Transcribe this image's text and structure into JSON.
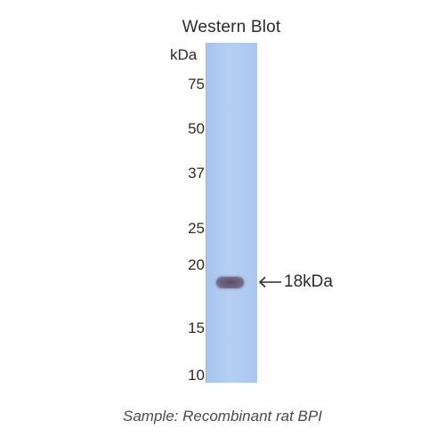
{
  "title": "Western Blot",
  "unit_label": "kDa",
  "markers": [
    {
      "label": "75",
      "value": 75
    },
    {
      "label": "50",
      "value": 50
    },
    {
      "label": "37",
      "value": 37
    },
    {
      "label": "25",
      "value": 25
    },
    {
      "label": "20",
      "value": 20
    },
    {
      "label": "15",
      "value": 15
    },
    {
      "label": "10",
      "value": 10
    }
  ],
  "band": {
    "label": "18kDa",
    "value": 18,
    "color": "#5f5570"
  },
  "lane_color": "#aec9f1",
  "caption": "Sample: Recombinant rat BPI"
}
